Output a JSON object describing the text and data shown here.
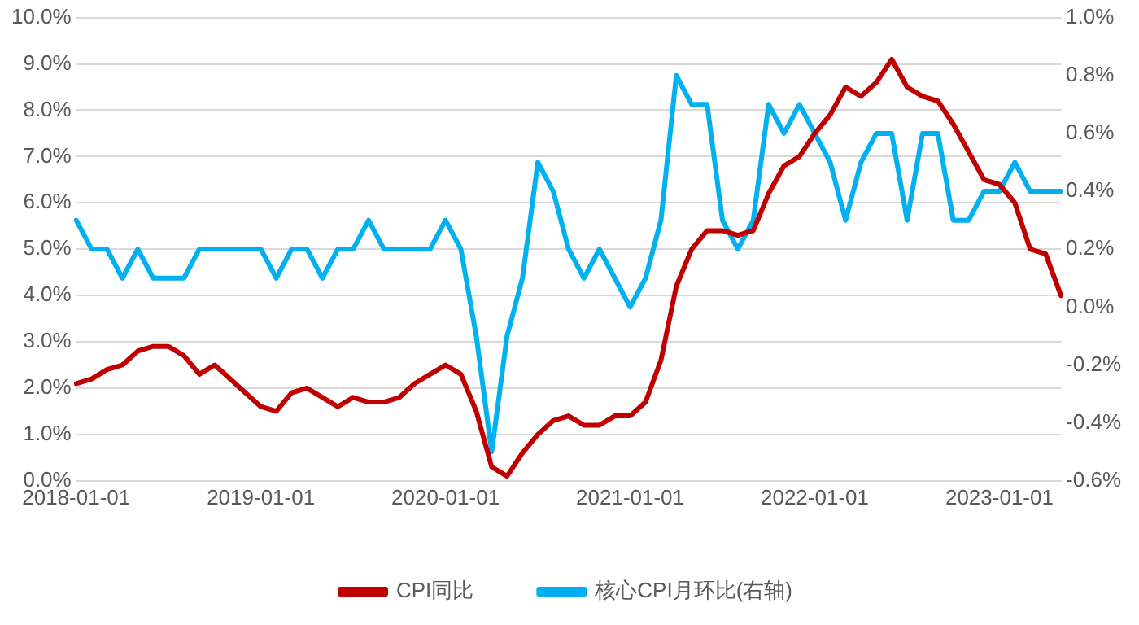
{
  "chart_data": {
    "type": "line",
    "categories": [
      "2018-01-01",
      null,
      null,
      null,
      null,
      null,
      null,
      null,
      null,
      null,
      null,
      null,
      "2019-01-01",
      null,
      null,
      null,
      null,
      null,
      null,
      null,
      null,
      null,
      null,
      null,
      "2020-01-01",
      null,
      null,
      null,
      null,
      null,
      null,
      null,
      null,
      null,
      null,
      null,
      "2021-01-01",
      null,
      null,
      null,
      null,
      null,
      null,
      null,
      null,
      null,
      null,
      null,
      "2022-01-01",
      null,
      null,
      null,
      null,
      null,
      null,
      null,
      null,
      null,
      null,
      null,
      "2023-01-01",
      null,
      null,
      null,
      null
    ],
    "series": [
      {
        "name": "CPI同比",
        "color": "#c00000",
        "values": [
          2.1,
          2.2,
          2.4,
          2.5,
          2.8,
          2.9,
          2.9,
          2.7,
          2.3,
          2.5,
          2.2,
          1.9,
          1.6,
          1.5,
          1.9,
          2.0,
          1.8,
          1.6,
          1.8,
          1.7,
          1.7,
          1.8,
          2.1,
          2.3,
          2.5,
          2.3,
          1.5,
          0.3,
          0.1,
          0.6,
          1.0,
          1.3,
          1.4,
          1.2,
          1.2,
          1.4,
          1.4,
          1.7,
          2.6,
          4.2,
          5.0,
          5.4,
          5.4,
          5.3,
          5.4,
          6.2,
          6.8,
          7.0,
          7.5,
          7.9,
          8.5,
          8.3,
          8.6,
          9.1,
          8.5,
          8.3,
          8.2,
          7.7,
          7.1,
          6.5,
          6.4,
          6.0,
          5.0,
          4.9,
          4.0
        ]
      },
      {
        "name": "核心CPI月环比(右轴)",
        "color": "#00b0f0",
        "axis": "y2",
        "values": [
          0.3,
          0.2,
          0.2,
          0.1,
          0.2,
          0.1,
          0.1,
          0.1,
          0.2,
          0.2,
          0.2,
          0.2,
          0.2,
          0.1,
          0.2,
          0.2,
          0.1,
          0.2,
          0.2,
          0.3,
          0.2,
          0.2,
          0.2,
          0.2,
          0.3,
          0.2,
          -0.1,
          -0.5,
          -0.1,
          0.1,
          0.5,
          0.4,
          0.2,
          0.1,
          0.2,
          0.1,
          0.0,
          0.1,
          0.3,
          0.8,
          0.7,
          0.7,
          0.3,
          0.2,
          0.3,
          0.7,
          0.6,
          0.7,
          0.6,
          0.5,
          0.3,
          0.5,
          0.6,
          0.6,
          0.3,
          0.6,
          0.6,
          0.3,
          0.3,
          0.4,
          0.4,
          0.5,
          0.4,
          0.4,
          0.4
        ]
      }
    ],
    "ylim": [
      0,
      10
    ],
    "yticks": [
      {
        "value": 0,
        "label": "0.0%"
      },
      {
        "value": 1,
        "label": "1.0%"
      },
      {
        "value": 2,
        "label": "2.0%"
      },
      {
        "value": 3,
        "label": "3.0%"
      },
      {
        "value": 4,
        "label": "4.0%"
      },
      {
        "value": 5,
        "label": "5.0%"
      },
      {
        "value": 6,
        "label": "6.0%"
      },
      {
        "value": 7,
        "label": "7.0%"
      },
      {
        "value": 8,
        "label": "8.0%"
      },
      {
        "value": 9,
        "label": "9.0%"
      },
      {
        "value": 10,
        "label": "10.0%"
      }
    ],
    "y2lim": [
      -0.6,
      1.0
    ],
    "y2ticks": [
      {
        "value": -0.6,
        "label": "-0.6%"
      },
      {
        "value": -0.4,
        "label": "-0.4%"
      },
      {
        "value": -0.2,
        "label": "-0.2%"
      },
      {
        "value": 0,
        "label": "0.0%"
      },
      {
        "value": 0.2,
        "label": "0.2%"
      },
      {
        "value": 0.4,
        "label": "0.4%"
      },
      {
        "value": 0.6,
        "label": "0.6%"
      },
      {
        "value": 0.8,
        "label": "0.8%"
      },
      {
        "value": 1.0,
        "label": "1.0%"
      }
    ],
    "grid": "y",
    "legend": "bottom",
    "marker": "none",
    "line_style": "solid"
  }
}
